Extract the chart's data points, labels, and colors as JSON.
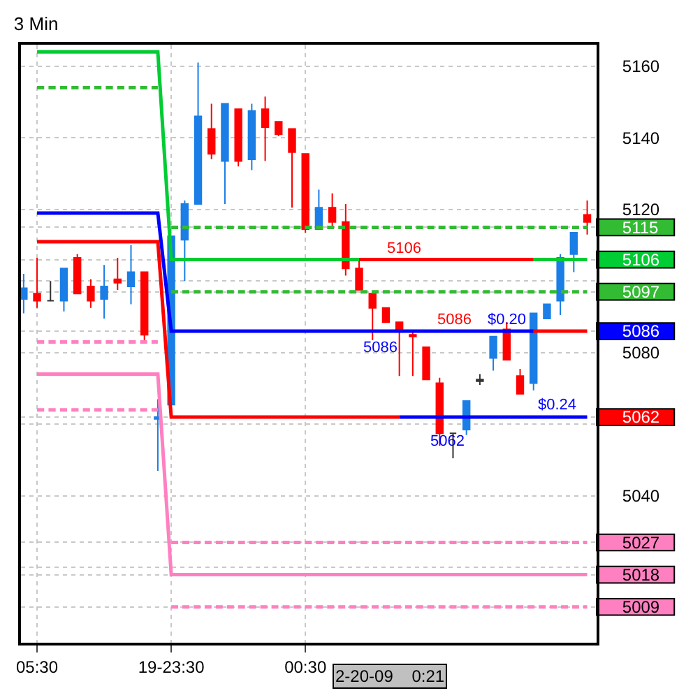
{
  "chart_data": {
    "type": "candlestick",
    "title": "3 Min",
    "categories": [
      null,
      "05:30",
      null,
      null,
      null,
      null,
      null,
      null,
      null,
      null,
      null,
      "19-23:30",
      null,
      null,
      null,
      null,
      null,
      null,
      null,
      null,
      null,
      "00:30",
      null,
      null,
      null,
      null,
      null,
      null,
      null,
      null,
      null,
      null,
      null,
      null,
      null,
      null,
      null,
      null,
      null,
      null,
      null,
      null,
      null
    ],
    "ohlc": [
      [
        5095,
        5102,
        5091,
        5098
      ],
      [
        5096.5,
        5106.5,
        5092.5,
        5094.5
      ],
      [
        5094.5,
        5100,
        5094.5,
        5094.5
      ],
      [
        5094.5,
        5103.5,
        5091.5,
        5103.5
      ],
      [
        5106.5,
        5107.5,
        5096.5,
        5096.5
      ],
      [
        5098.5,
        5100.5,
        5092.5,
        5094.5
      ],
      [
        5095,
        5104.5,
        5089.5,
        5098.5
      ],
      [
        5100.5,
        5106.5,
        5097.5,
        5099.5
      ],
      [
        5098.5,
        5110,
        5093.5,
        5102.5
      ],
      [
        5102.5,
        5102.5,
        5082.5,
        5085
      ],
      [
        5061.5,
        5067,
        5047,
        5062
      ],
      [
        5065.5,
        5112.5,
        5065.5,
        5112.5
      ],
      [
        5111.5,
        5122.5,
        5100,
        5121.5
      ],
      [
        5121.5,
        5161,
        5121.5,
        5146
      ],
      [
        5142.5,
        5149.5,
        5134,
        5135.5
      ],
      [
        5133.5,
        5149.5,
        5121.5,
        5149.5
      ],
      [
        5148,
        5148,
        5132,
        5133.5
      ],
      [
        5134,
        5149.5,
        5131,
        5147.5
      ],
      [
        5148,
        5151.5,
        5133.5,
        5143
      ],
      [
        5144.5,
        5144.5,
        5140.5,
        5141
      ],
      [
        5142.5,
        5142.5,
        5120.5,
        5136
      ],
      [
        5135.5,
        5135.5,
        5113.5,
        5114.5
      ],
      [
        5114.5,
        5125.5,
        5114.5,
        5120.5
      ],
      [
        5120.5,
        5124.5,
        5114.5,
        5116.5
      ],
      [
        5116.5,
        5121.5,
        5101.5,
        5103.5
      ],
      [
        5103.5,
        5106.5,
        5097.5,
        5097.5
      ],
      [
        5096.5,
        5096.5,
        5083.5,
        5092.5
      ],
      [
        5092.5,
        5092.5,
        5088.5,
        5088.5
      ],
      [
        5088.5,
        5088.5,
        5073.5,
        5086
      ],
      [
        5085,
        5086,
        5073.5,
        5084.5
      ],
      [
        5081.5,
        5081.5,
        5072.5,
        5072.5
      ],
      [
        5071.5,
        5073,
        5054,
        5057.5
      ],
      [
        5057.5,
        5057.5,
        5050.5,
        5057.5
      ],
      [
        5058.5,
        5066.5,
        5057,
        5066.5
      ],
      [
        5072.5,
        5074,
        5071,
        5072
      ],
      [
        5078.5,
        5084.5,
        5075,
        5084.5
      ],
      [
        5086.5,
        5088.5,
        5078,
        5078
      ],
      [
        5073.5,
        5075.5,
        5068.5,
        5068.5
      ],
      [
        5071.5,
        5091,
        5069.5,
        5091
      ],
      [
        5089.5,
        5093.5,
        5089.5,
        5093.5
      ],
      [
        5094.5,
        5107.5,
        5090.5,
        5106.5
      ],
      [
        5107.5,
        5113.5,
        5102.5,
        5113.5
      ],
      [
        5118.5,
        5122.5,
        5113,
        5116.5
      ]
    ],
    "colors": [
      "#1a7ee6",
      "#ff0000",
      "#333333",
      "#1a7ee6",
      "#ff0000",
      "#ff0000",
      "#1a7ee6",
      "#ff0000",
      "#1a7ee6",
      "#ff0000",
      "#1a7ee6",
      "#1a7ee6",
      "#1a7ee6",
      "#1a7ee6",
      "#ff0000",
      "#1a7ee6",
      "#ff0000",
      "#1a7ee6",
      "#ff0000",
      "#ff0000",
      "#ff0000",
      "#ff0000",
      "#1a7ee6",
      "#ff0000",
      "#ff0000",
      "#ff0000",
      "#ff0000",
      "#ff0000",
      "#ff0000",
      "#ff0000",
      "#ff0000",
      "#ff0000",
      "#333333",
      "#1a7ee6",
      "#333333",
      "#1a7ee6",
      "#ff0000",
      "#ff0000",
      "#1a7ee6",
      "#1a7ee6",
      "#1a7ee6",
      "#1a7ee6",
      "#ff0000"
    ],
    "series": [
      {
        "type": "line",
        "line_style": "solid",
        "color": "#00cc33",
        "values": [
          null,
          5164,
          5164,
          5164,
          5164,
          5164,
          5164,
          5164,
          5164,
          5164,
          5164,
          5106,
          5106,
          5106,
          5106,
          5106,
          5106,
          5106,
          5106,
          5106,
          5106,
          5106,
          5106,
          5106,
          5106,
          5106,
          null,
          null,
          null,
          null,
          null,
          null,
          null,
          null,
          null,
          null,
          null,
          null,
          5106,
          5106,
          5106,
          5106,
          5106
        ]
      },
      {
        "type": "line",
        "line_style": "solid",
        "color": "#ff0000",
        "values": [
          null,
          null,
          null,
          null,
          null,
          null,
          null,
          null,
          null,
          null,
          null,
          null,
          null,
          null,
          null,
          null,
          null,
          null,
          null,
          null,
          null,
          null,
          null,
          null,
          null,
          5106,
          5106,
          5106,
          5106,
          5106,
          5106,
          5106,
          5106,
          5106,
          5106,
          5106,
          5106,
          5106,
          5106,
          null,
          null,
          null,
          null
        ]
      },
      {
        "type": "line",
        "line_style": "solid",
        "color": "#0000ff",
        "values": [
          null,
          5119,
          5119,
          5119,
          5119,
          5119,
          5119,
          5119,
          5119,
          5119,
          5119,
          5086,
          5086,
          5086,
          5086,
          5086,
          5086,
          5086,
          5086,
          5086,
          5086,
          5086,
          5086,
          5086,
          5086,
          5086,
          5086,
          5086,
          5086,
          5086,
          5086,
          5086,
          5086,
          5086,
          5086,
          5086,
          5086,
          5086,
          5086,
          null,
          null,
          null,
          null
        ]
      },
      {
        "type": "line",
        "line_style": "solid",
        "color": "#ff0000",
        "values": [
          null,
          null,
          null,
          null,
          null,
          null,
          null,
          null,
          null,
          null,
          null,
          null,
          null,
          null,
          null,
          null,
          null,
          null,
          null,
          null,
          null,
          null,
          null,
          null,
          null,
          null,
          null,
          null,
          null,
          null,
          null,
          null,
          null,
          null,
          null,
          null,
          null,
          null,
          5086,
          5086,
          5086,
          5086,
          5086
        ]
      },
      {
        "type": "line",
        "line_style": "solid",
        "color": "#ff0000",
        "values": [
          null,
          5111,
          5111,
          5111,
          5111,
          5111,
          5111,
          5111,
          5111,
          5111,
          5111,
          5062,
          5062,
          5062,
          5062,
          5062,
          5062,
          5062,
          5062,
          5062,
          5062,
          5062,
          5062,
          5062,
          5062,
          5062,
          5062,
          5062,
          5062,
          null,
          null,
          null,
          null,
          null,
          null,
          null,
          null,
          null,
          null,
          null,
          null,
          null,
          null
        ]
      },
      {
        "type": "line",
        "line_style": "solid",
        "color": "#0000ff",
        "values": [
          null,
          null,
          null,
          null,
          null,
          null,
          null,
          null,
          null,
          null,
          null,
          null,
          null,
          null,
          null,
          null,
          null,
          null,
          null,
          null,
          null,
          null,
          null,
          null,
          null,
          null,
          null,
          null,
          5062,
          5062,
          5062,
          5062,
          5062,
          5062,
          5062,
          5062,
          5062,
          5062,
          5062,
          5062,
          5062,
          5062,
          5062
        ]
      },
      {
        "type": "line",
        "line_style": "solid",
        "color": "#ff80c0",
        "values": [
          null,
          5074,
          5074,
          5074,
          5074,
          5074,
          5074,
          5074,
          5074,
          5074,
          5074,
          5018,
          5018,
          5018,
          5018,
          5018,
          5018,
          5018,
          5018,
          5018,
          5018,
          5018,
          5018,
          5018,
          5018,
          5018,
          5018,
          5018,
          5018,
          5018,
          5018,
          5018,
          5018,
          5018,
          5018,
          5018,
          5018,
          5018,
          5018,
          5018,
          5018,
          5018,
          5018
        ]
      },
      {
        "type": "line",
        "line_style": "dashed",
        "color": "#33bb33",
        "values": [
          null,
          5154,
          5154,
          5154,
          5154,
          5154,
          5154,
          5154,
          5154,
          5154,
          5154,
          null,
          null,
          null,
          null,
          null,
          null,
          null,
          null,
          null,
          null,
          null,
          null,
          null,
          null,
          null,
          null,
          null,
          null,
          null,
          null,
          null,
          null,
          null,
          null,
          null,
          null,
          null,
          null,
          null,
          null,
          null,
          null
        ]
      },
      {
        "type": "line",
        "line_style": "dashed",
        "color": "#33bb33",
        "values": [
          null,
          null,
          null,
          null,
          null,
          null,
          null,
          null,
          null,
          null,
          null,
          5115,
          5115,
          5115,
          5115,
          5115,
          5115,
          5115,
          5115,
          5115,
          5115,
          5115,
          5115,
          5115,
          5115,
          5115,
          5115,
          5115,
          5115,
          5115,
          5115,
          5115,
          5115,
          5115,
          5115,
          5115,
          5115,
          5115,
          5115,
          5115,
          5115,
          5115,
          5115
        ]
      },
      {
        "type": "line",
        "line_style": "dashed",
        "color": "#33bb33",
        "values": [
          null,
          null,
          null,
          null,
          null,
          null,
          null,
          null,
          null,
          null,
          null,
          5097,
          5097,
          5097,
          5097,
          5097,
          5097,
          5097,
          5097,
          5097,
          5097,
          5097,
          5097,
          5097,
          5097,
          5097,
          5097,
          5097,
          5097,
          5097,
          5097,
          5097,
          5097,
          5097,
          5097,
          5097,
          5097,
          5097,
          5097,
          5097,
          5097,
          5097,
          5097
        ]
      },
      {
        "type": "line",
        "line_style": "dashed",
        "color": "#ff80c0",
        "values": [
          null,
          5083,
          5083,
          5083,
          5083,
          5083,
          5083,
          5083,
          5083,
          5083,
          5083,
          null,
          null,
          null,
          null,
          null,
          null,
          null,
          null,
          null,
          null,
          null,
          null,
          null,
          null,
          null,
          null,
          null,
          null,
          null,
          null,
          null,
          null,
          null,
          null,
          null,
          null,
          null,
          null,
          null,
          null,
          null,
          null
        ]
      },
      {
        "type": "line",
        "line_style": "dashed",
        "color": "#ff80c0",
        "values": [
          null,
          5064,
          5064,
          5064,
          5064,
          5064,
          5064,
          5064,
          5064,
          5064,
          5064,
          null,
          null,
          null,
          null,
          null,
          null,
          null,
          null,
          null,
          null,
          null,
          null,
          null,
          null,
          null,
          null,
          null,
          null,
          null,
          null,
          null,
          null,
          null,
          null,
          null,
          null,
          null,
          null,
          null,
          null,
          null,
          null
        ]
      },
      {
        "type": "line",
        "line_style": "dashed",
        "color": "#ff80c0",
        "values": [
          null,
          null,
          null,
          null,
          null,
          null,
          null,
          null,
          null,
          null,
          null,
          5027,
          5027,
          5027,
          5027,
          5027,
          5027,
          5027,
          5027,
          5027,
          5027,
          5027,
          5027,
          5027,
          5027,
          5027,
          5027,
          5027,
          5027,
          5027,
          5027,
          5027,
          5027,
          5027,
          5027,
          5027,
          5027,
          5027,
          5027,
          5027,
          5027,
          5027,
          5027
        ]
      },
      {
        "type": "line",
        "line_style": "dashed",
        "color": "#ff80c0",
        "values": [
          null,
          null,
          null,
          null,
          null,
          null,
          null,
          null,
          null,
          null,
          null,
          5009,
          5009,
          5009,
          5009,
          5009,
          5009,
          5009,
          5009,
          5009,
          5009,
          5009,
          5009,
          5009,
          5009,
          5009,
          5009,
          5009,
          5009,
          5009,
          5009,
          5009,
          5009,
          5009,
          5009,
          5009,
          5009,
          5009,
          5009,
          5009,
          5009,
          5009,
          5009
        ]
      }
    ],
    "ylim": [
      4999,
      5166
    ],
    "yticks": [
      5009,
      5018,
      {
        "value": 5020,
        "label": null
      },
      5027,
      5040,
      {
        "value": 5060,
        "label": null
      },
      5062,
      5080,
      5086,
      5097,
      {
        "value": 5100,
        "label": null
      },
      5106,
      5115,
      5120,
      5140,
      5160
    ],
    "grid": true,
    "marker": "none",
    "annotations": [
      {
        "text": "5106",
        "y": 5106
      },
      {
        "text": "5086",
        "y": 5086
      },
      {
        "text": "$0.20",
        "y": 5086
      },
      {
        "text": "5086",
        "y": 5086
      },
      {
        "text": "5062",
        "y": 5062
      },
      {
        "text": "$0.24",
        "y": 5062
      },
      "2-20-09    0:21"
    ]
  }
}
